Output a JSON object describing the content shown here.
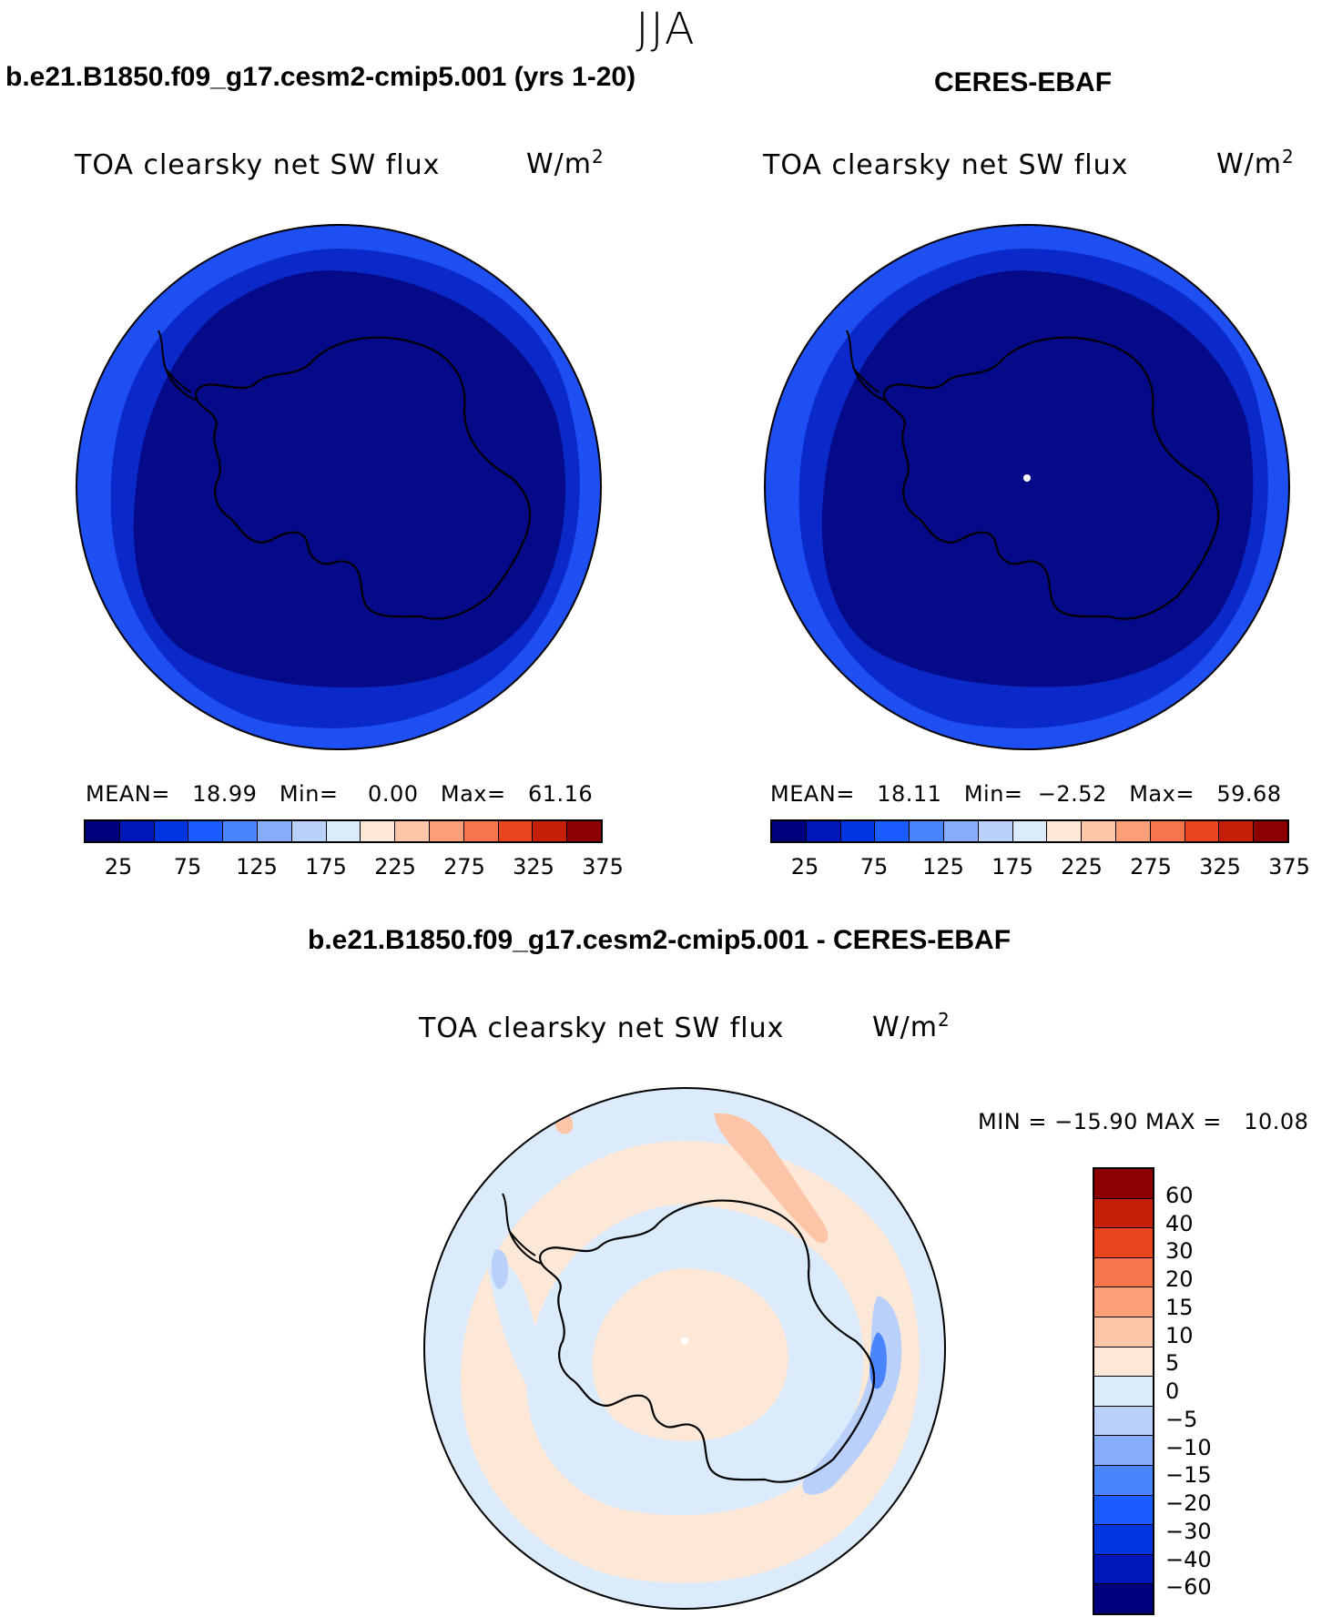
{
  "figure": {
    "season": "JJA"
  },
  "panels": [
    {
      "title": "b.e21.B1850.f09_g17.cesm2-cmip5.001 (yrs 1-20)",
      "variable": "TOA clearsky net SW flux",
      "units": "W/m",
      "units_sup": "2",
      "stats": "MEAN=   18.99   Min=    0.00   Max=   61.16",
      "colorbar_labels": [
        "25",
        "75",
        "125",
        "175",
        "225",
        "275",
        "325",
        "375"
      ]
    },
    {
      "title": "CERES-EBAF",
      "variable": "TOA clearsky net SW flux",
      "units": "W/m",
      "units_sup": "2",
      "stats": "MEAN=   18.11   Min=  −2.52   Max=   59.68",
      "colorbar_labels": [
        "25",
        "75",
        "125",
        "175",
        "225",
        "275",
        "325",
        "375"
      ]
    },
    {
      "title": "b.e21.B1850.f09_g17.cesm2-cmip5.001 - CERES-EBAF",
      "variable": "TOA clearsky net SW flux",
      "units": "W/m",
      "units_sup": "2",
      "stats": "MIN = −15.90 MAX =   10.08",
      "colorbar_labels": [
        "60",
        "40",
        "30",
        "20",
        "15",
        "10",
        "5",
        "0",
        "−5",
        "−10",
        "−15",
        "−20",
        "−30",
        "−40",
        "−60"
      ]
    }
  ],
  "colors": {
    "abs_palette": [
      "#00007f",
      "#0018b8",
      "#0035e0",
      "#1a5cff",
      "#4a84ff",
      "#86aefc",
      "#b9d0fb",
      "#dcebfc",
      "#fde8d8",
      "#fcc5a8",
      "#fa9f78",
      "#f7754a",
      "#e9461d",
      "#c41f08",
      "#8b0000"
    ],
    "diff_palette": [
      "#8b0000",
      "#c41f08",
      "#e9461d",
      "#f7754a",
      "#fa9f78",
      "#fcc5a8",
      "#fde8d8",
      "#dcebfc",
      "#b9d0fb",
      "#86aefc",
      "#4a84ff",
      "#1a5cff",
      "#0035e0",
      "#0018b8",
      "#00007f"
    ],
    "ring_outer": "#1e4ff2",
    "ring_middle": "#0b29c9",
    "map_inner": "#050a88",
    "diff_background": "#fde8d8",
    "diff_negative": "#dcebfc",
    "diff_negative_strong": "#b9d0fb",
    "diff_positive": "#fcc5a8"
  }
}
